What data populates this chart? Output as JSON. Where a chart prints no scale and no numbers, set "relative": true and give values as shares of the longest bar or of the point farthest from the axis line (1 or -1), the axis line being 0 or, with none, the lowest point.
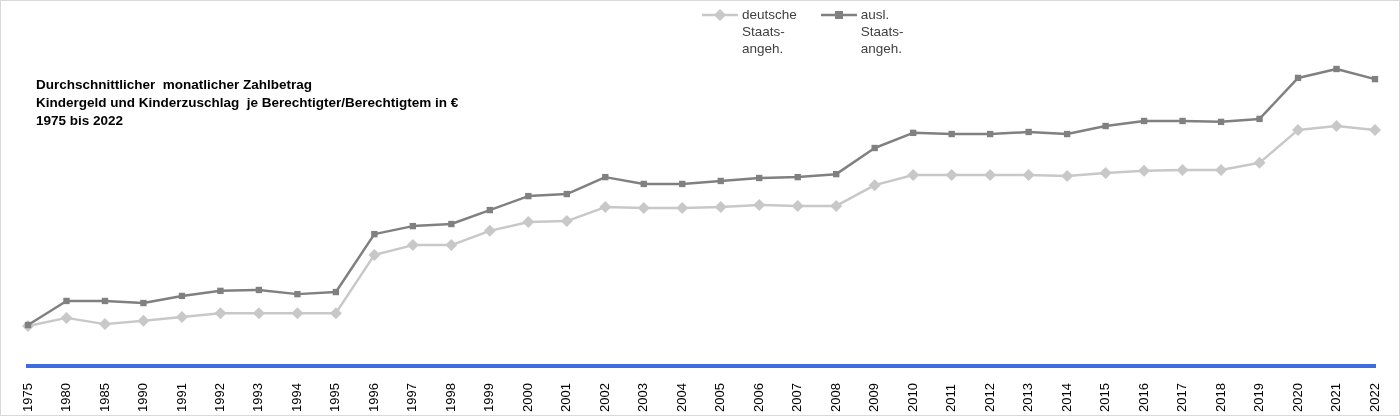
{
  "chart_data": {
    "type": "line",
    "title": "Durchschnittlicher  monatlicher Zahlbetrag\nKindergeld und Kinderzuschlag  je Berechtigter/Berechtigtem in €\n1975 bis 2022",
    "relative": true,
    "legend": "top",
    "grid": false,
    "categories": [
      "1975",
      "1980",
      "1985",
      "1990",
      "1991",
      "1992",
      "1993",
      "1994",
      "1995",
      "1996",
      "1997",
      "1998",
      "1999",
      "2000",
      "2001",
      "2002",
      "2003",
      "2004",
      "2005",
      "2006",
      "2007",
      "2008",
      "2009",
      "2010",
      "2011",
      "2012",
      "2013",
      "2014",
      "2015",
      "2016",
      "2017",
      "2018",
      "2019",
      "2020",
      "2021",
      "2022"
    ],
    "series": [
      {
        "name": "deutsche\nStaats-\nangeh.",
        "color": "#c8c8c8",
        "marker": "diamond",
        "values": [
          0.135,
          0.162,
          0.141,
          0.152,
          0.165,
          0.178,
          0.178,
          0.178,
          0.178,
          0.374,
          0.407,
          0.407,
          0.455,
          0.485,
          0.488,
          0.535,
          0.532,
          0.532,
          0.535,
          0.542,
          0.539,
          0.539,
          0.609,
          0.643,
          0.643,
          0.643,
          0.643,
          0.64,
          0.65,
          0.657,
          0.66,
          0.66,
          0.684,
          0.795,
          0.808,
          0.795
        ]
      },
      {
        "name": "ausl.\nStaats-\nangeh.",
        "color": "#808080",
        "marker": "square",
        "values": [
          0.138,
          0.219,
          0.219,
          0.212,
          0.236,
          0.253,
          0.256,
          0.242,
          0.249,
          0.444,
          0.471,
          0.478,
          0.525,
          0.572,
          0.579,
          0.636,
          0.613,
          0.613,
          0.623,
          0.633,
          0.636,
          0.646,
          0.734,
          0.785,
          0.781,
          0.781,
          0.788,
          0.781,
          0.808,
          0.825,
          0.825,
          0.822,
          0.832,
          0.97,
          1,
          0.966
        ]
      }
    ]
  }
}
